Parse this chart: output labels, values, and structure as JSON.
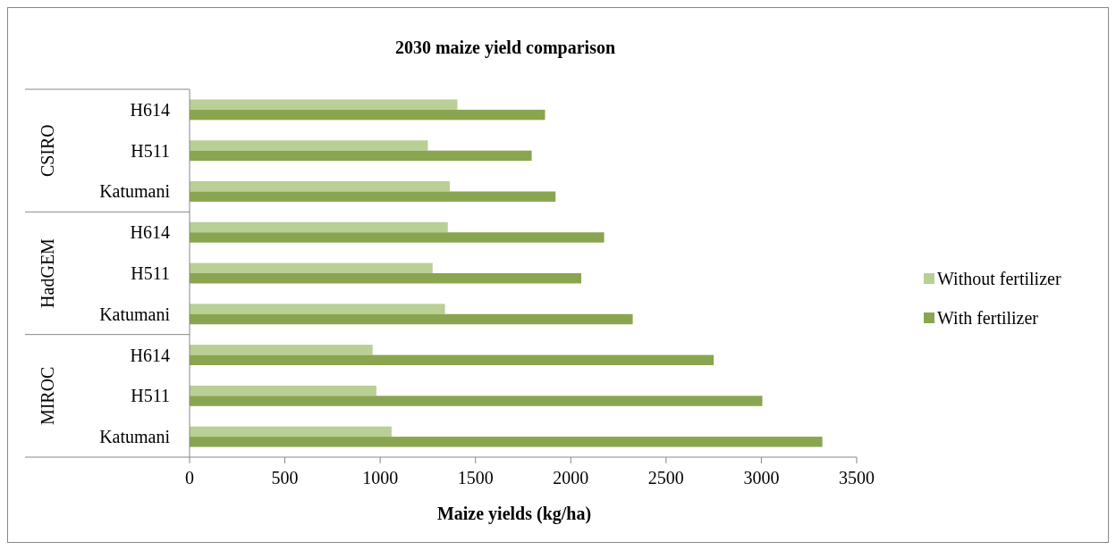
{
  "chart_data": {
    "type": "bar",
    "orientation": "horizontal",
    "title": "2030 maize yield comparison",
    "xlabel": "Maize yields (kg/ha)",
    "categories": [
      "H614",
      "H511",
      "Katumani",
      "H614",
      "H511",
      "Katumani",
      "H614",
      "H511",
      "Katumani"
    ],
    "annotations": [
      "CSIRO",
      "HadGEM",
      "MIROC"
    ],
    "series": [
      {
        "name": "Without fertilizer",
        "color": "#b9cf95",
        "values": [
          1405,
          1250,
          1365,
          1355,
          1275,
          1340,
          960,
          980,
          1060
        ]
      },
      {
        "name": "With fertilizer",
        "color": "#8aa54f",
        "values": [
          1865,
          1795,
          1920,
          2175,
          2055,
          2325,
          2750,
          3005,
          3320
        ]
      }
    ],
    "xlim": [
      0,
      3500
    ],
    "xticks": [
      0,
      500,
      1000,
      1500,
      2000,
      2500,
      3000,
      3500
    ],
    "grid": false,
    "legend": "right"
  }
}
